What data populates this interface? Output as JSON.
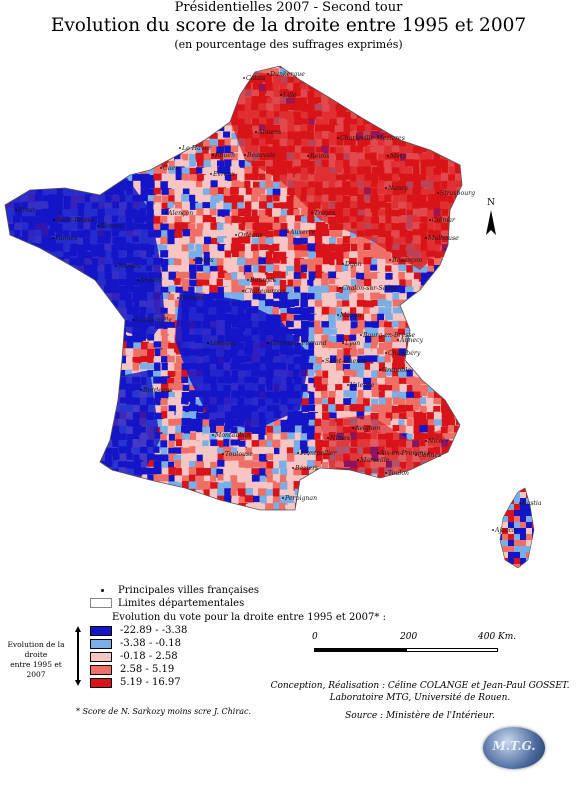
{
  "header": {
    "line1": "Présidentielles 2007 - Second tour",
    "title": "Evolution du score de la droite entre 1995 et 2007",
    "subtitle": "(en pourcentage des suffrages exprimés)"
  },
  "map": {
    "north_label": "N",
    "cities": [
      "Dunkerque",
      "Calais",
      "Lille",
      "Le Havre",
      "Amiens",
      "Rouen",
      "Caen",
      "Beauvais",
      "Charleville-Mezieres",
      "Reims",
      "Metz",
      "Nancy",
      "Strasbourg",
      "Brest",
      "Saint-Brieuc",
      "Rennes",
      "Alençon",
      "Evreux",
      "Orléans",
      "Troyes",
      "Colmar",
      "Mulhouse",
      "Vannes",
      "Angers",
      "Nantes",
      "Tours",
      "Auxerre",
      "Dijon",
      "Besançon",
      "Bourges",
      "Chalon-sur-Saône",
      "Poitiers",
      "Châteauroux",
      "La Rochelle",
      "Limoges",
      "Mâcon",
      "Lyon",
      "Annecy",
      "Bourg-en-Bresse",
      "Chambéry",
      "Clermont-Ferrand",
      "Saint-Etienne",
      "Grenoble",
      "Bordeaux",
      "Valence",
      "Montauban",
      "Nîmes",
      "Avignon",
      "Marseille",
      "Toulon",
      "Nice",
      "Cannes",
      "Aix-en-Provence",
      "Montpellier",
      "Toulouse",
      "Perpignan",
      "Béziers",
      "Ajaccio",
      "Bastia"
    ]
  },
  "legend": {
    "cities_label": "Principales villes françaises",
    "limits_label": "Limites départementales",
    "title": "Evolution du vote pour la droite entre 1995 et 2007* :",
    "side_label_1": "Evolution de la droite",
    "side_label_2": "entre 1995 et 2007",
    "classes": [
      {
        "label": "-22.89 - -3.38",
        "color": "#1515c8"
      },
      {
        "label": "-3.38 - -0.18",
        "color": "#7aaee6"
      },
      {
        "label": "-0.18 - 2.58",
        "color": "#f6c6c4"
      },
      {
        "label": "2.58 - 5.19",
        "color": "#ef6f66"
      },
      {
        "label": "5.19 - 16.97",
        "color": "#d8141a"
      }
    ],
    "footnote": "* Score de N. Sarkozy moins scre J. Chirac."
  },
  "scale": {
    "tick0": "0",
    "tick1": "200",
    "tick2": "400 Km."
  },
  "credits": {
    "line1": "Conception, Réalisation : Céline COLANGE et Jean-Paul GOSSET.",
    "line2": "Laboratoire MTG, Université de Rouen.",
    "line3": "Source : Ministère de l'Intérieur."
  },
  "logo": {
    "text": "M.T.G."
  }
}
